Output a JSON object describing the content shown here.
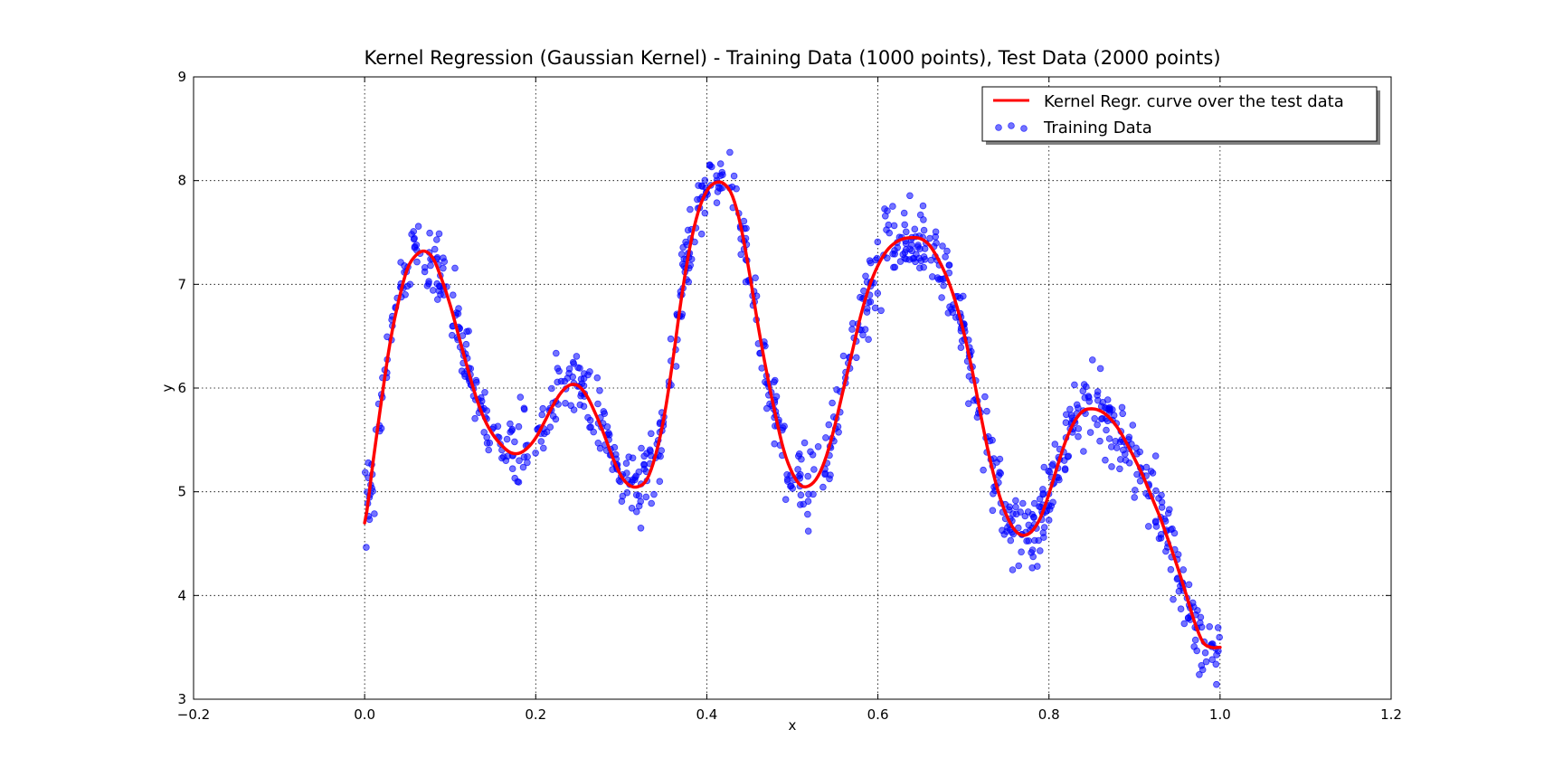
{
  "chart_data": {
    "type": "scatter",
    "title": "Kernel Regression (Gaussian Kernel) - Training Data (1000 points), Test Data (2000 points)",
    "xlabel": "x",
    "ylabel": "y",
    "xlim": [
      -0.2,
      1.2
    ],
    "ylim": [
      3,
      9
    ],
    "x_ticks": [
      "−0.2",
      "0.0",
      "0.2",
      "0.4",
      "0.6",
      "0.8",
      "1.0",
      "1.2"
    ],
    "x_tick_values": [
      -0.2,
      0.0,
      0.2,
      0.4,
      0.6,
      0.8,
      1.0,
      1.2
    ],
    "y_ticks": [
      "3",
      "4",
      "5",
      "6",
      "7",
      "8",
      "9"
    ],
    "y_tick_values": [
      3,
      4,
      5,
      6,
      7,
      8,
      9
    ],
    "grid": true,
    "legend_position": "top-right",
    "series": [
      {
        "name": "Kernel Regr. curve over the test data",
        "kind": "line",
        "color": "#ff0000",
        "x": [
          0.0,
          0.01,
          0.02,
          0.03,
          0.04,
          0.05,
          0.06,
          0.07,
          0.08,
          0.09,
          0.1,
          0.11,
          0.12,
          0.13,
          0.14,
          0.15,
          0.16,
          0.17,
          0.18,
          0.19,
          0.2,
          0.21,
          0.22,
          0.23,
          0.24,
          0.25,
          0.26,
          0.27,
          0.28,
          0.29,
          0.3,
          0.31,
          0.32,
          0.33,
          0.34,
          0.35,
          0.36,
          0.37,
          0.38,
          0.39,
          0.4,
          0.41,
          0.42,
          0.43,
          0.44,
          0.45,
          0.46,
          0.47,
          0.48,
          0.49,
          0.5,
          0.51,
          0.52,
          0.53,
          0.54,
          0.55,
          0.56,
          0.57,
          0.58,
          0.59,
          0.6,
          0.61,
          0.62,
          0.63,
          0.64,
          0.65,
          0.66,
          0.67,
          0.68,
          0.69,
          0.7,
          0.71,
          0.72,
          0.73,
          0.74,
          0.75,
          0.76,
          0.77,
          0.78,
          0.79,
          0.8,
          0.81,
          0.82,
          0.83,
          0.84,
          0.85,
          0.86,
          0.87,
          0.88,
          0.89,
          0.9,
          0.91,
          0.92,
          0.93,
          0.94,
          0.95,
          0.96,
          0.97,
          0.98,
          0.99,
          1.0
        ],
        "y": [
          4.7,
          5.3,
          5.9,
          6.45,
          6.85,
          7.15,
          7.28,
          7.32,
          7.25,
          7.05,
          6.8,
          6.5,
          6.2,
          5.92,
          5.7,
          5.55,
          5.45,
          5.38,
          5.37,
          5.42,
          5.52,
          5.67,
          5.83,
          5.96,
          6.03,
          6.02,
          5.92,
          5.75,
          5.55,
          5.33,
          5.15,
          5.06,
          5.05,
          5.12,
          5.35,
          5.72,
          6.25,
          6.85,
          7.35,
          7.7,
          7.9,
          7.98,
          7.97,
          7.85,
          7.55,
          7.1,
          6.6,
          6.15,
          5.75,
          5.4,
          5.18,
          5.06,
          5.06,
          5.15,
          5.35,
          5.65,
          6.0,
          6.35,
          6.7,
          6.98,
          7.18,
          7.32,
          7.4,
          7.44,
          7.45,
          7.44,
          7.38,
          7.25,
          7.08,
          6.85,
          6.55,
          6.18,
          5.75,
          5.35,
          5.02,
          4.78,
          4.63,
          4.58,
          4.62,
          4.75,
          4.98,
          5.25,
          5.5,
          5.68,
          5.78,
          5.8,
          5.78,
          5.72,
          5.62,
          5.48,
          5.32,
          5.15,
          4.95,
          4.75,
          4.52,
          4.28,
          4.02,
          3.75,
          3.55,
          3.5,
          3.5
        ],
        "x_dense": [],
        "y_dense": []
      },
      {
        "name": "Training Data",
        "kind": "scatter",
        "color": "#0000ff",
        "n_points": 1000,
        "approximation_note_omitted": true
      }
    ]
  },
  "legend": {
    "items": [
      {
        "label": "Kernel Regr. curve over the test data",
        "type": "line",
        "color": "#ff0000"
      },
      {
        "label": "Training Data",
        "type": "scatter",
        "color": "#0000ff"
      }
    ]
  }
}
